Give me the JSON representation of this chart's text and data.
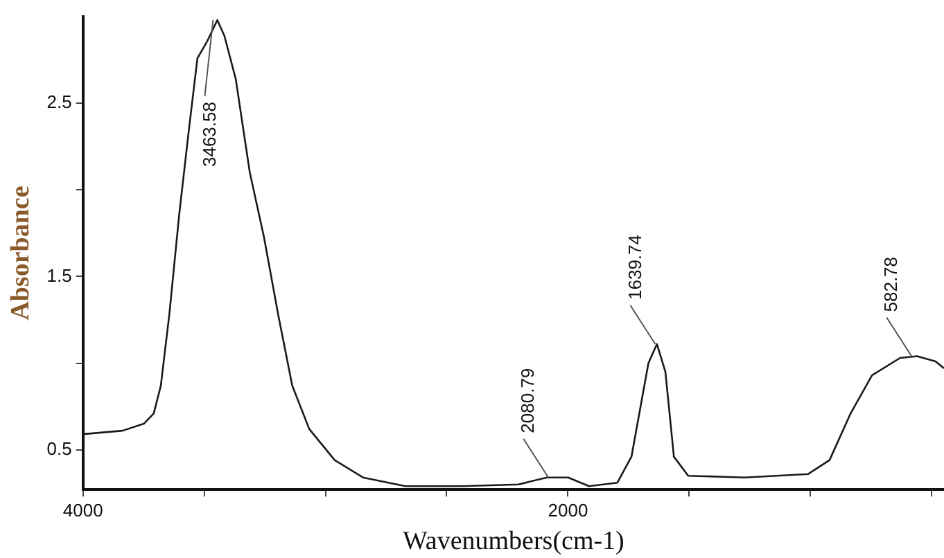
{
  "chart_data": {
    "type": "line",
    "xlabel": "Wavenumbers(cm-1)",
    "ylabel": "Absorbance",
    "x": [
      4000,
      3837,
      3749,
      3708,
      3679,
      3644,
      3603,
      3563,
      3528,
      3487,
      3446,
      3417,
      3370,
      3312,
      3254,
      3195,
      3137,
      3067,
      2962,
      2845,
      2670,
      2437,
      2204,
      2087,
      1999,
      1913,
      1796,
      1738,
      1668,
      1633,
      1598,
      1563,
      1504,
      1271,
      1009,
      921,
      834,
      746,
      630,
      560,
      484,
      449
    ],
    "series": [
      {
        "color": "#1a1a1a",
        "values": [
          0.59,
          0.61,
          0.65,
          0.71,
          0.87,
          1.28,
          1.86,
          2.35,
          2.76,
          2.86,
          2.98,
          2.89,
          2.64,
          2.1,
          1.73,
          1.28,
          0.87,
          0.62,
          0.44,
          0.34,
          0.29,
          0.29,
          0.3,
          0.34,
          0.34,
          0.29,
          0.31,
          0.46,
          1.0,
          1.11,
          0.95,
          0.46,
          0.35,
          0.34,
          0.36,
          0.44,
          0.71,
          0.93,
          1.03,
          1.04,
          1.01,
          0.97
        ]
      }
    ],
    "xlim": [
      4000,
      449
    ],
    "ylim": [
      0.27,
      3.0
    ],
    "xticks": [
      4000,
      {
        "value": 3500,
        "label": null
      },
      {
        "value": 3000,
        "label": null
      },
      {
        "value": 2500,
        "label": null
      },
      2000,
      {
        "value": 1500,
        "label": null
      },
      {
        "value": 1000,
        "label": null
      },
      {
        "value": 500,
        "label": null
      }
    ],
    "yticks": [
      0.5,
      {
        "value": 1.0,
        "label": null
      },
      1.5,
      {
        "value": 2.0,
        "label": null
      },
      2.5
    ],
    "grid": false,
    "legend": false,
    "marker": "none",
    "line_style": "solid",
    "annotations": [
      {
        "text": "3463.58",
        "x": 3463.58,
        "y": 2.98
      },
      {
        "text": "2080.79",
        "x": 2080.79,
        "y": 0.34
      },
      {
        "text": "1639.74",
        "x": 1639.74,
        "y": 1.11
      },
      {
        "text": "582.78",
        "x": 582.78,
        "y": 1.04
      }
    ]
  }
}
